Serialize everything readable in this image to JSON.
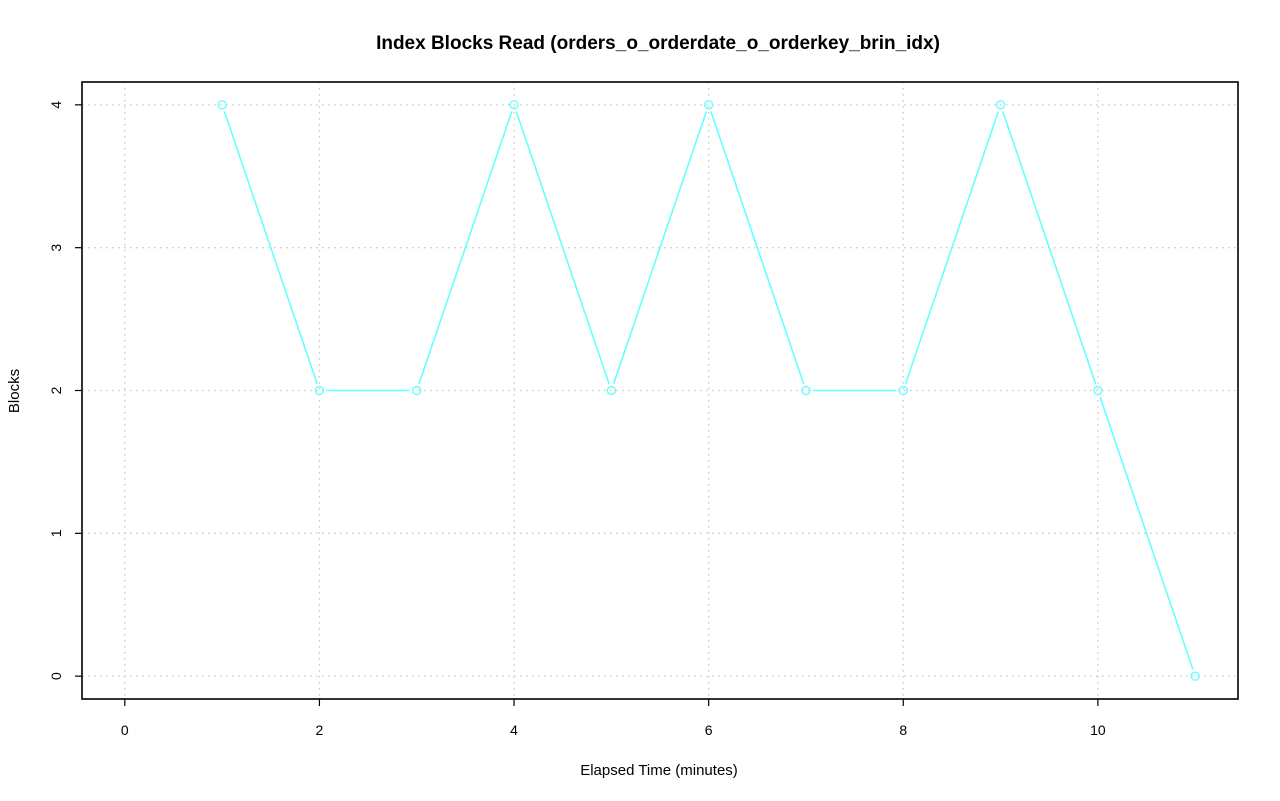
{
  "chart_data": {
    "type": "line",
    "title": "Index Blocks Read (orders_o_orderdate_o_orderkey_brin_idx)",
    "xlabel": "Elapsed Time (minutes)",
    "ylabel": "Blocks",
    "xlim": [
      -0.44,
      11.44
    ],
    "ylim": [
      -0.16,
      4.16
    ],
    "xticks": [
      0,
      2,
      4,
      6,
      8,
      10
    ],
    "yticks": [
      0,
      1,
      2,
      3,
      4
    ],
    "grid": true,
    "legend": "none",
    "markers": "open-circle",
    "series": [
      {
        "color": "#66ffff",
        "x": [
          1,
          2,
          3,
          4,
          5,
          6,
          7,
          8,
          9,
          10,
          11
        ],
        "y": [
          4,
          2,
          2,
          4,
          2,
          4,
          2,
          2,
          4,
          2,
          0
        ]
      }
    ]
  }
}
